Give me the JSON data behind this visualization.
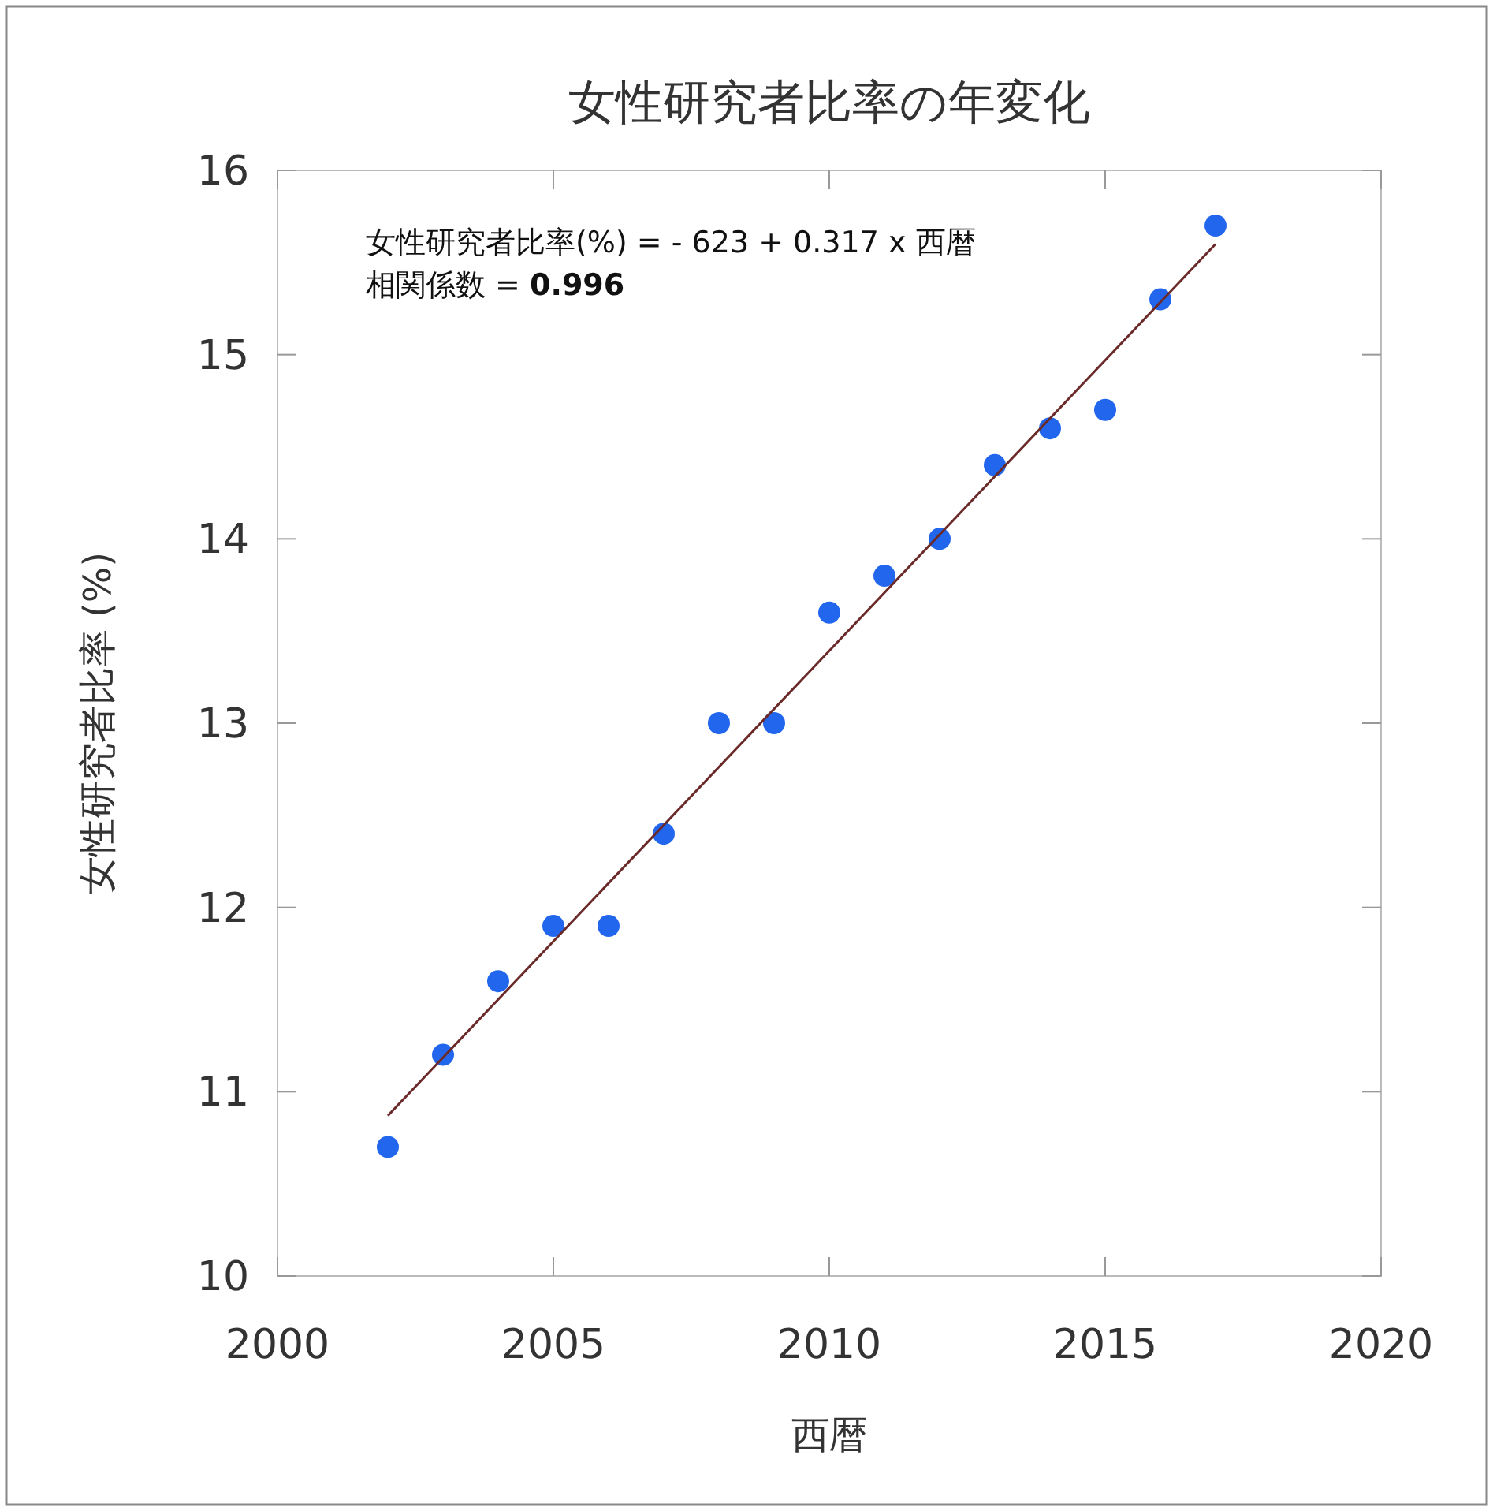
{
  "chart_data": {
    "type": "scatter",
    "title": "女性研究者比率の年変化",
    "xlabel": "西暦",
    "ylabel": "女性研究者比率 (%)",
    "annotations": [
      "女性研究者比率(%) = - 623 + 0.317 x 西暦",
      "相関係数 = **0.996**"
    ],
    "xlim": [
      2000,
      2020
    ],
    "xticks": [
      2000,
      2005,
      2010,
      2015,
      2020
    ],
    "ylim": [
      10,
      16
    ],
    "yticks": [
      10,
      11,
      12,
      13,
      14,
      15,
      16
    ],
    "grid": false,
    "series": [
      {
        "marker": "circle",
        "color": "#2266ee",
        "x": [
          2002,
          2003,
          2004,
          2005,
          2006,
          2007,
          2008,
          2009,
          2010,
          2011,
          2012,
          2013,
          2014,
          2015,
          2016,
          2017
        ],
        "values": [
          10.7,
          11.2,
          11.6,
          11.9,
          11.9,
          12.4,
          13.0,
          13.0,
          13.6,
          13.8,
          14.0,
          14.4,
          14.6,
          14.7,
          15.3,
          15.7
        ]
      },
      {
        "type": "line",
        "color": "#6b2a2a",
        "x": [
          2002,
          2017
        ],
        "values": [
          10.87,
          15.6
        ]
      }
    ]
  }
}
